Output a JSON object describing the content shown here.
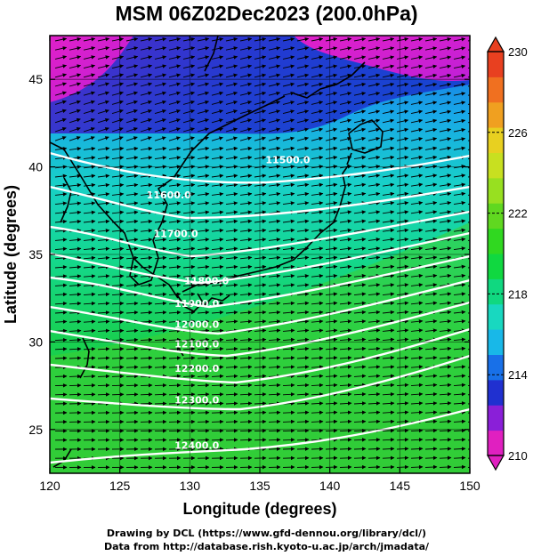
{
  "title": "MSM 06Z02Dec2023 (200.0hPa)",
  "x_axis": {
    "label": "Longitude (degrees)",
    "range": [
      120,
      150
    ],
    "ticks": [
      "120",
      "125",
      "130",
      "135",
      "140",
      "145",
      "150"
    ]
  },
  "y_axis": {
    "label": "Latitude  (degrees)",
    "range": [
      22.5,
      47.5
    ],
    "ticks": [
      "25",
      "30",
      "35",
      "40",
      "45"
    ]
  },
  "colorbar": {
    "min": 210,
    "max": 230,
    "ticks": [
      "210",
      "214",
      "218",
      "222",
      "226",
      "230"
    ],
    "colors": [
      "#e020c0",
      "#8a1fd8",
      "#2030d0",
      "#1870e8",
      "#18b8e8",
      "#18d8c0",
      "#10d880",
      "#10d840",
      "#30d820",
      "#60d820",
      "#98e020",
      "#c8e020",
      "#e8d020",
      "#f0a020",
      "#f07020",
      "#e84020"
    ]
  },
  "contours": [
    {
      "label": "11500.0",
      "lon": 137.0,
      "lat": 40.2
    },
    {
      "label": "11600.0",
      "lon": 128.5,
      "lat": 38.2
    },
    {
      "label": "11700.0",
      "lon": 129.0,
      "lat": 36.0
    },
    {
      "label": "11800.0",
      "lon": 131.2,
      "lat": 33.3
    },
    {
      "label": "11900.0",
      "lon": 130.5,
      "lat": 32.0
    },
    {
      "label": "12000.0",
      "lon": 130.5,
      "lat": 30.8
    },
    {
      "label": "12100.0",
      "lon": 130.5,
      "lat": 29.7
    },
    {
      "label": "12200.0",
      "lon": 130.5,
      "lat": 28.3
    },
    {
      "label": "12300.0",
      "lon": 130.5,
      "lat": 26.5
    },
    {
      "label": "12400.0",
      "lon": 130.5,
      "lat": 23.9
    }
  ],
  "credits": [
    "Drawing by DCL (https://www.gfd-dennou.org/library/dcl/)",
    "Data from http://database.rish.kyoto-u.ac.jp/arch/jmadata/"
  ]
}
